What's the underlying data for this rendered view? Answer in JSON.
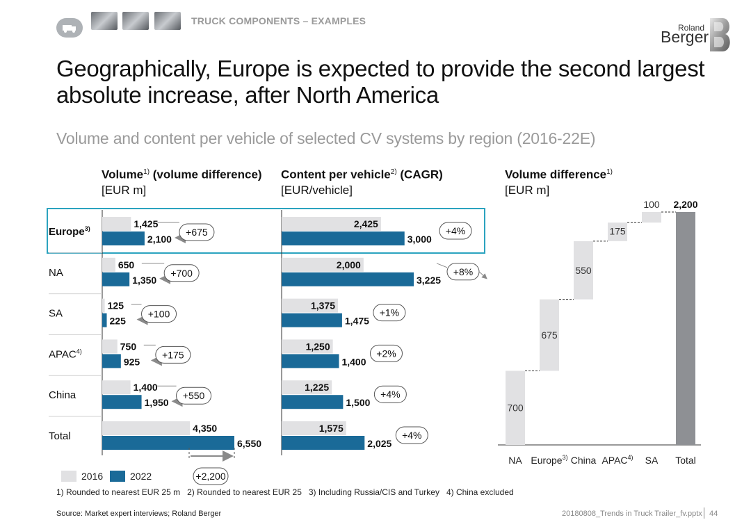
{
  "header": {
    "category": "TRUCK COMPONENTS – EXAMPLES",
    "logo_top": "Roland",
    "logo_bottom": "Berger"
  },
  "title": "Geographically, Europe is expected to provide the second largest absolute increase, after North America",
  "subtitle": "Volume and content per vehicle of selected CV systems by region (2016-22E)",
  "columns": {
    "volume": {
      "bold": "Volume",
      "sup1": "1)",
      "bold2": " (volume difference)",
      "unit": "[EUR m]"
    },
    "content": {
      "bold": "Content per vehicle",
      "sup1": "2)",
      "bold2": " (CAGR)",
      "unit": "[EUR/vehicle]"
    },
    "waterfall": {
      "bold": "Volume difference",
      "sup1": "1)",
      "unit": "[EUR m]"
    }
  },
  "legend": {
    "y2016": "2016",
    "y2022": "2022"
  },
  "colors": {
    "y2016": "#e1e1e3",
    "y2022": "#1a6a98",
    "total": "#8e9094",
    "highlight": "#2ba3bf"
  },
  "chart_data": [
    {
      "type": "bar",
      "title": "Volume (volume difference)",
      "unit": "EUR m",
      "categories": [
        "Europe",
        "NA",
        "SA",
        "APAC",
        "China",
        "Total"
      ],
      "category_sup": [
        "3)",
        "",
        "",
        "4)",
        "",
        ""
      ],
      "highlight": "Europe",
      "series": [
        {
          "name": "2016",
          "values": [
            1425,
            650,
            125,
            750,
            1400,
            4350
          ],
          "labels": [
            "1,425",
            "650",
            "125",
            "750",
            "1,400",
            "4,350"
          ]
        },
        {
          "name": "2022",
          "values": [
            2100,
            1350,
            225,
            925,
            1950,
            6550
          ],
          "labels": [
            "2,100",
            "1,350",
            "225",
            "925",
            "1,950",
            "6,550"
          ]
        }
      ],
      "differences": [
        "+675",
        "+700",
        "+100",
        "+175",
        "+550",
        "+2,200"
      ]
    },
    {
      "type": "bar",
      "title": "Content per vehicle (CAGR)",
      "unit": "EUR/vehicle",
      "categories": [
        "Europe",
        "NA",
        "SA",
        "APAC",
        "China",
        "Total"
      ],
      "series": [
        {
          "name": "2016",
          "values": [
            2425,
            2000,
            1375,
            1250,
            1225,
            1575
          ],
          "labels": [
            "2,425",
            "2,000",
            "1,375",
            "1,250",
            "1,225",
            "1,575"
          ]
        },
        {
          "name": "2022",
          "values": [
            3000,
            3225,
            1475,
            1400,
            1500,
            2025
          ],
          "labels": [
            "3,000",
            "3,225",
            "1,475",
            "1,400",
            "1,500",
            "2,025"
          ]
        }
      ],
      "cagr": [
        "+4%",
        "+8%",
        "+1%",
        "+2%",
        "+4%",
        "+4%"
      ]
    },
    {
      "type": "bar",
      "subtype": "waterfall",
      "title": "Volume difference",
      "unit": "EUR m",
      "categories": [
        "NA",
        "Europe",
        "China",
        "APAC",
        "SA",
        "Total"
      ],
      "category_sup": [
        "",
        "3)",
        "",
        "4)",
        "",
        ""
      ],
      "values": [
        700,
        675,
        550,
        175,
        100,
        2200
      ],
      "labels": [
        "700",
        "675",
        "550",
        "175",
        "100",
        "2,200"
      ],
      "ylim": [
        0,
        2200
      ]
    }
  ],
  "footnotes": "1) Rounded to nearest EUR 25 m   2) Rounded to nearest EUR 25   3) Including Russia/CIS and Turkey   4) China excluded",
  "source": "Source: Market expert interviews; Roland Berger",
  "file_ref": "20180808_Trends in Truck Trailer_fv.pptx",
  "page_number": "44"
}
